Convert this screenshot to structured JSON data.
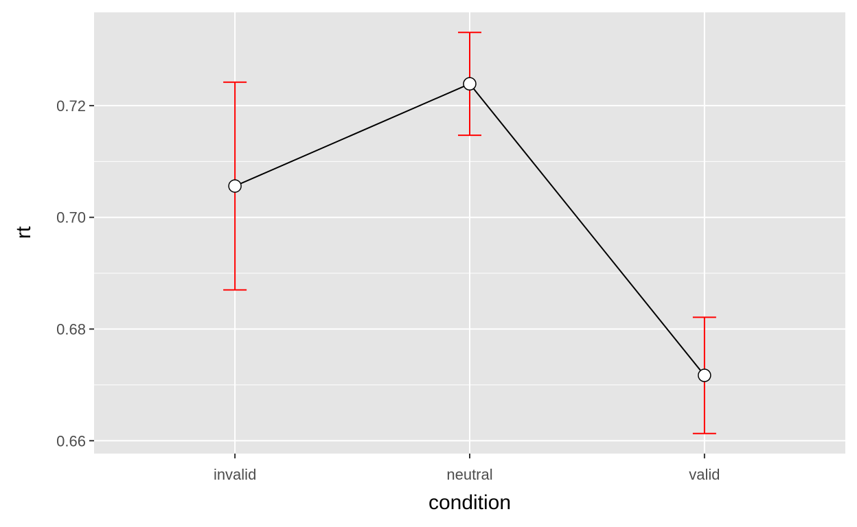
{
  "chart_data": {
    "type": "line",
    "xlabel": "condition",
    "ylabel": "rt",
    "categories": [
      "invalid",
      "neutral",
      "valid"
    ],
    "values": [
      0.7056,
      0.7239,
      0.6717
    ],
    "error_lower": [
      0.687,
      0.7147,
      0.6613
    ],
    "error_upper": [
      0.7242,
      0.7331,
      0.6821
    ],
    "yticks": [
      0.66,
      0.68,
      0.7,
      0.72
    ],
    "ytick_labels": [
      "0.66",
      "0.68",
      "0.70",
      "0.72"
    ],
    "ylim": [
      0.6577,
      0.7367
    ],
    "grid": true,
    "colors": {
      "panel_background": "#e5e5e5",
      "gridline": "#ffffff",
      "line": "#000000",
      "error_bar": "#ff0000",
      "point_fill": "#ffffff",
      "point_stroke": "#000000",
      "tick": "#333333"
    }
  }
}
